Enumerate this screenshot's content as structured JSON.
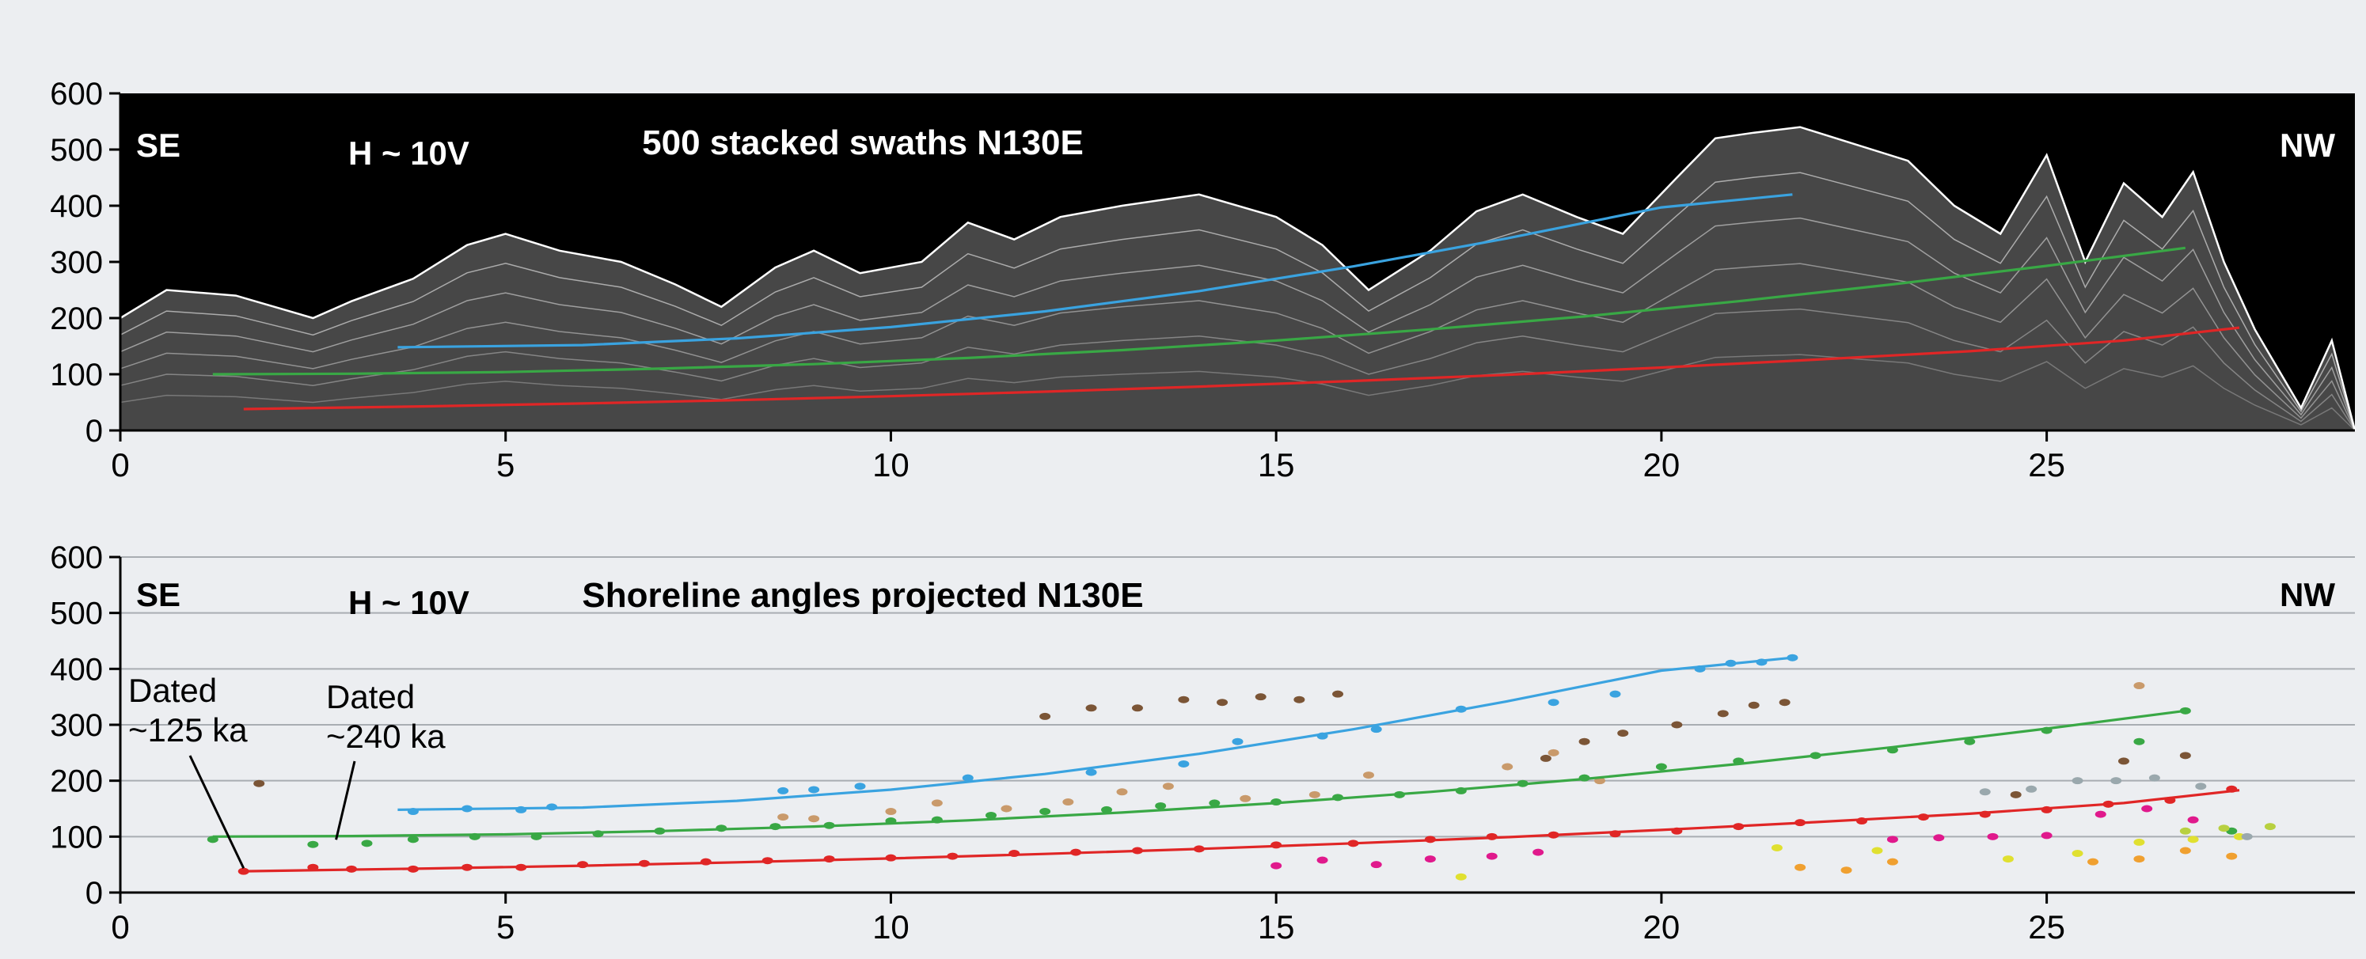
{
  "chart_data": [
    {
      "type": "area",
      "title": "500 stacked swaths N130E",
      "annotations": [
        "SE",
        "H ~ 10V",
        "NW"
      ],
      "xlabel": "",
      "ylabel": "",
      "xlim": [
        0,
        29
      ],
      "ylim": [
        0,
        600
      ],
      "xticks": [
        0,
        5,
        10,
        15,
        20,
        25
      ],
      "yticks": [
        0,
        100,
        200,
        300,
        400,
        500,
        600
      ],
      "grid": false,
      "background": "#000000",
      "profile_color": "#ffffff",
      "profile_envelope": {
        "x": [
          0,
          0.6,
          1.5,
          2.5,
          3.0,
          3.8,
          4.5,
          5.0,
          5.7,
          6.5,
          7.2,
          7.8,
          8.5,
          9.0,
          9.6,
          10.4,
          11.0,
          11.6,
          12.2,
          13.0,
          14.0,
          15.0,
          15.6,
          16.2,
          17.0,
          17.6,
          18.2,
          18.9,
          19.5,
          20.2,
          20.7,
          21.2,
          21.8,
          22.5,
          23.2,
          23.8,
          24.4,
          25.0,
          25.5,
          26.0,
          26.5,
          26.9,
          27.3,
          27.7,
          28.3,
          28.7,
          29.0
        ],
        "y": [
          200,
          250,
          240,
          200,
          230,
          270,
          330,
          350,
          320,
          300,
          260,
          220,
          290,
          320,
          280,
          300,
          370,
          340,
          380,
          400,
          420,
          380,
          330,
          250,
          320,
          390,
          420,
          380,
          350,
          450,
          520,
          530,
          540,
          510,
          480,
          400,
          350,
          490,
          300,
          440,
          380,
          460,
          300,
          180,
          40,
          160,
          0
        ]
      },
      "series": [
        {
          "name": "",
          "color": "#3aa3e0",
          "x": [
            3.6,
            6,
            8,
            10,
            12,
            14,
            16,
            18,
            20,
            21.7
          ],
          "y": [
            148,
            152,
            164,
            184,
            212,
            248,
            292,
            342,
            397,
            420
          ]
        },
        {
          "name": "",
          "color": "#39a845",
          "x": [
            1.2,
            3,
            5,
            7,
            9,
            11,
            13,
            15,
            17,
            19,
            21,
            23,
            25,
            26.8
          ],
          "y": [
            100,
            101,
            104,
            110,
            118,
            129,
            143,
            160,
            180,
            203,
            230,
            260,
            293,
            325
          ]
        },
        {
          "name": "",
          "color": "#e02626",
          "x": [
            1.6,
            4,
            6,
            8,
            10,
            12,
            14,
            16,
            18,
            20,
            22,
            24,
            26,
            27.5
          ],
          "y": [
            38,
            43,
            48,
            54,
            61,
            69,
            78,
            88,
            99,
            112,
            126,
            141,
            160,
            183
          ]
        }
      ]
    },
    {
      "type": "scatter",
      "title": "Shoreline angles projected N130E",
      "annotations": [
        "SE",
        "H ~ 10V",
        "NW"
      ],
      "callouts": [
        {
          "text": "Dated\n~125 ka",
          "x": 1.6,
          "y": 35
        },
        {
          "text": "Dated\n~240 ka",
          "x": 2.8,
          "y": 86
        }
      ],
      "xlabel": "",
      "ylabel": "",
      "xlim": [
        0,
        29
      ],
      "ylim": [
        0,
        600
      ],
      "xticks": [
        0,
        5,
        10,
        15,
        20,
        25
      ],
      "yticks": [
        0,
        100,
        200,
        300,
        400,
        500,
        600
      ],
      "grid": true,
      "series": [
        {
          "name": "",
          "role": "fit",
          "color": "#3aa3e0",
          "x": [
            3.6,
            6,
            8,
            10,
            12,
            14,
            16,
            18,
            20,
            21.7
          ],
          "y": [
            148,
            152,
            164,
            184,
            212,
            248,
            292,
            342,
            397,
            420
          ]
        },
        {
          "name": "",
          "role": "fit",
          "color": "#39a845",
          "x": [
            1.2,
            3,
            5,
            7,
            9,
            11,
            13,
            15,
            17,
            19,
            21,
            23,
            25,
            26.8
          ],
          "y": [
            100,
            101,
            104,
            110,
            118,
            129,
            143,
            160,
            180,
            203,
            230,
            260,
            293,
            325
          ]
        },
        {
          "name": "",
          "role": "fit",
          "color": "#e02626",
          "x": [
            1.6,
            4,
            6,
            8,
            10,
            12,
            14,
            16,
            18,
            20,
            22,
            24,
            26,
            27.5
          ],
          "y": [
            38,
            43,
            48,
            54,
            61,
            69,
            78,
            88,
            99,
            112,
            126,
            141,
            160,
            183
          ]
        },
        {
          "name": "",
          "role": "points",
          "color": "#3aa3e0",
          "x": [
            3.8,
            4.5,
            5.2,
            5.6,
            8.6,
            9.0,
            9.6,
            11.0,
            12.6,
            13.8,
            14.5,
            15.6,
            16.3,
            17.4,
            18.6,
            19.4,
            20.5,
            20.9,
            21.3,
            21.7
          ],
          "y": [
            145,
            150,
            148,
            153,
            182,
            184,
            190,
            205,
            215,
            230,
            270,
            280,
            292,
            328,
            340,
            355,
            400,
            410,
            412,
            420
          ]
        },
        {
          "name": "",
          "role": "points",
          "color": "#39a845",
          "x": [
            1.2,
            2.5,
            3.2,
            3.8,
            4.6,
            5.4,
            6.2,
            7.0,
            7.8,
            8.5,
            9.2,
            10.0,
            10.6,
            11.3,
            12.0,
            12.8,
            13.5,
            14.2,
            15.0,
            15.8,
            16.6,
            17.4,
            18.2,
            19.0,
            20.0,
            21.0,
            22.0,
            23.0,
            24.0,
            25.0,
            26.2,
            26.8,
            27.4
          ],
          "y": [
            95,
            86,
            88,
            95,
            100,
            100,
            105,
            110,
            115,
            118,
            120,
            128,
            130,
            138,
            145,
            148,
            155,
            160,
            162,
            170,
            175,
            182,
            195,
            205,
            225,
            235,
            245,
            255,
            270,
            290,
            270,
            325,
            110
          ]
        },
        {
          "name": "",
          "role": "points",
          "color": "#e02626",
          "x": [
            1.6,
            2.5,
            3.0,
            3.8,
            4.5,
            5.2,
            6.0,
            6.8,
            7.6,
            8.4,
            9.2,
            10.0,
            10.8,
            11.6,
            12.4,
            13.2,
            14.0,
            15.0,
            16.0,
            17.0,
            17.8,
            18.6,
            19.4,
            20.2,
            21.0,
            21.8,
            22.6,
            23.4,
            24.2,
            25.0,
            25.8,
            26.6,
            27.4
          ],
          "y": [
            38,
            45,
            42,
            42,
            45,
            45,
            50,
            52,
            55,
            57,
            60,
            62,
            65,
            70,
            72,
            75,
            78,
            85,
            88,
            95,
            100,
            103,
            105,
            110,
            118,
            125,
            128,
            135,
            140,
            148,
            158,
            165,
            185
          ]
        },
        {
          "name": "",
          "role": "points",
          "color": "#7b5536",
          "x": [
            1.8,
            12.0,
            12.6,
            13.2,
            13.8,
            14.3,
            14.8,
            15.3,
            15.8,
            18.5,
            19.0,
            19.5,
            20.2,
            20.8,
            21.2,
            21.6,
            24.6,
            26.0,
            26.8
          ],
          "y": [
            195,
            315,
            330,
            330,
            345,
            340,
            350,
            345,
            355,
            240,
            270,
            285,
            300,
            320,
            335,
            340,
            175,
            235,
            245
          ]
        },
        {
          "name": "",
          "role": "points",
          "color": "#c99a6b",
          "x": [
            8.6,
            9.0,
            10.0,
            10.6,
            11.5,
            12.3,
            13.0,
            13.6,
            14.6,
            15.5,
            16.2,
            18.0,
            18.6,
            19.2,
            26.2
          ],
          "y": [
            135,
            132,
            145,
            160,
            150,
            162,
            180,
            190,
            168,
            175,
            210,
            225,
            250,
            200,
            370
          ]
        },
        {
          "name": "",
          "role": "points",
          "color": "#e0198c",
          "x": [
            15.0,
            15.6,
            16.3,
            17.0,
            17.8,
            18.4,
            23.0,
            23.6,
            24.3,
            25.0,
            25.7,
            26.3,
            26.9
          ],
          "y": [
            48,
            58,
            50,
            60,
            65,
            72,
            95,
            98,
            100,
            102,
            140,
            150,
            130
          ]
        },
        {
          "name": "",
          "role": "points",
          "color": "#f0a030",
          "x": [
            21.8,
            22.4,
            23.0,
            25.6,
            26.2,
            26.8,
            27.4
          ],
          "y": [
            45,
            40,
            55,
            55,
            60,
            75,
            65
          ]
        },
        {
          "name": "",
          "role": "points",
          "color": "#e0e030",
          "x": [
            17.4,
            21.5,
            22.8,
            24.5,
            25.4,
            26.2,
            26.9,
            27.5
          ],
          "y": [
            28,
            80,
            75,
            60,
            70,
            90,
            95,
            100
          ]
        },
        {
          "name": "",
          "role": "points",
          "color": "#9aa8ad",
          "x": [
            24.2,
            24.8,
            25.4,
            25.9,
            26.4,
            27.0,
            27.6
          ],
          "y": [
            180,
            185,
            200,
            200,
            205,
            190,
            100
          ]
        },
        {
          "name": "",
          "role": "points",
          "color": "#b8d040",
          "x": [
            26.8,
            27.3,
            27.9
          ],
          "y": [
            110,
            115,
            118
          ]
        }
      ]
    }
  ]
}
